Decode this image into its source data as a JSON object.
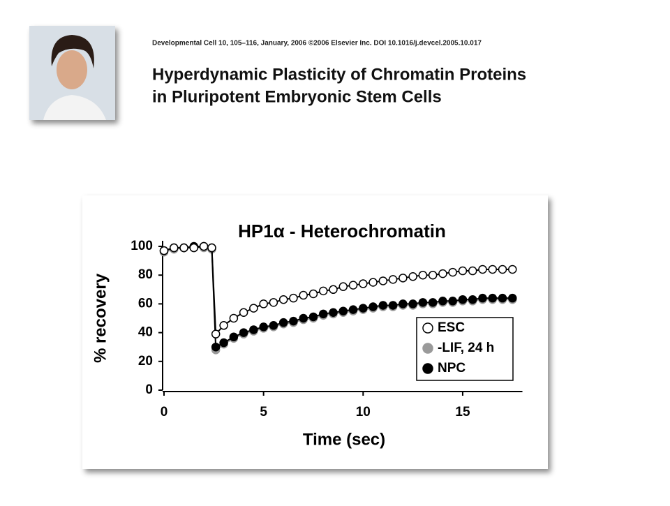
{
  "header": {
    "citation": "Developmental Cell 10, 105–116, January, 2006 ©2006 Elsevier Inc.   DOI 10.1016/j.devcel.2005.10.017",
    "title_lines": [
      "Hyperdynamic Plasticity of Chromatin Proteins",
      "in Pluripotent Embryonic Stem Cells"
    ]
  },
  "chart_data": {
    "type": "scatter",
    "title": "HP1α - Heterochromatin",
    "x_label": "Time (sec)",
    "y_label": "% recovery",
    "x": [
      0,
      0.5,
      1,
      1.5,
      2,
      2.4,
      2.6,
      3,
      3.5,
      4,
      4.5,
      5,
      5.5,
      6,
      6.5,
      7,
      7.5,
      8,
      8.5,
      9,
      9.5,
      10,
      10.5,
      11,
      11.5,
      12,
      12.5,
      13,
      13.5,
      14,
      14.5,
      15,
      15.5,
      16,
      16.5,
      17,
      17.5
    ],
    "series": [
      {
        "name": "ESC",
        "color": "#000000",
        "fill": "#ffffff",
        "values": [
          97,
          99,
          99,
          99,
          100,
          99,
          39,
          45,
          50,
          54,
          57,
          60,
          61,
          63,
          64,
          66,
          67,
          69,
          70,
          72,
          73,
          74,
          75,
          76,
          77,
          78,
          79,
          80,
          80,
          81,
          82,
          83,
          83,
          84,
          84,
          84,
          84
        ]
      },
      {
        "name": "-LIF, 24 h",
        "color": "#9a9a9a",
        "fill": "#9a9a9a",
        "values": [
          96,
          98,
          99,
          99,
          99,
          98,
          28,
          32,
          36,
          39,
          41,
          43,
          44,
          46,
          47,
          49,
          50,
          52,
          53,
          54,
          55,
          56,
          57,
          58,
          58,
          59,
          59,
          60,
          60,
          61,
          61,
          62,
          62,
          63,
          63,
          63,
          63
        ]
      },
      {
        "name": "NPC",
        "color": "#000000",
        "fill": "#000000",
        "values": [
          97,
          99,
          99,
          100,
          100,
          99,
          30,
          33,
          37,
          40,
          42,
          44,
          45,
          47,
          48,
          50,
          51,
          53,
          54,
          55,
          56,
          57,
          58,
          59,
          59,
          60,
          60,
          61,
          61,
          62,
          62,
          63,
          63,
          64,
          64,
          64,
          64
        ]
      }
    ],
    "xlim": [
      0,
      18
    ],
    "ylim": [
      0,
      100
    ],
    "xticks": [
      0,
      5,
      10,
      15
    ],
    "yticks": [
      0,
      20,
      40,
      60,
      80,
      100
    ],
    "grid": false,
    "legend": "lower-right"
  }
}
